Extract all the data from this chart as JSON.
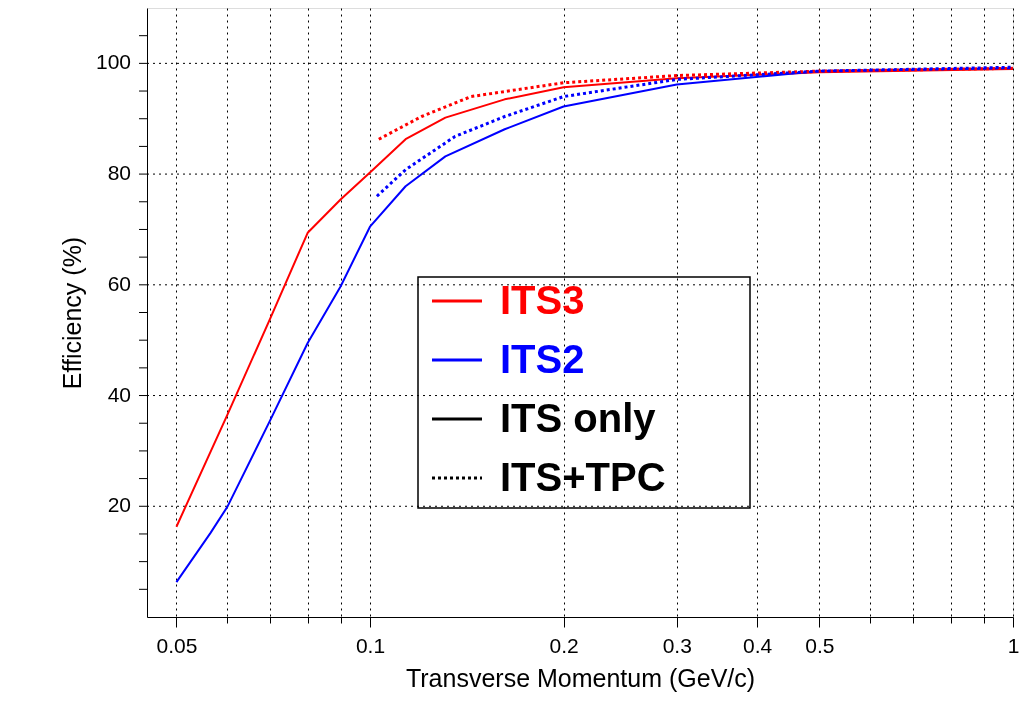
{
  "chart_data": {
    "type": "line",
    "xlabel": "Transverse Momentum (GeV/c)",
    "ylabel": "Efficiency (%)",
    "log": "x",
    "grid": true,
    "legend": "center",
    "xlim": [
      0.045,
      1
    ],
    "ylim": [
      0,
      110
    ],
    "xticks": [
      0.05,
      {
        "value": 0.06,
        "label": null
      },
      {
        "value": 0.07,
        "label": null
      },
      {
        "value": 0.08,
        "label": null
      },
      {
        "value": 0.09,
        "label": null
      },
      0.1,
      0.2,
      0.3,
      0.4,
      0.5,
      {
        "value": 0.6,
        "label": null
      },
      {
        "value": 0.7,
        "label": null
      },
      {
        "value": 0.8,
        "label": null
      },
      {
        "value": 0.9,
        "label": null
      },
      1
    ],
    "yticks": [
      {
        "value": 5,
        "label": null
      },
      {
        "value": 10,
        "label": null
      },
      {
        "value": 15,
        "label": null
      },
      20,
      {
        "value": 25,
        "label": null
      },
      {
        "value": 30,
        "label": null
      },
      {
        "value": 35,
        "label": null
      },
      40,
      {
        "value": 45,
        "label": null
      },
      {
        "value": 50,
        "label": null
      },
      {
        "value": 55,
        "label": null
      },
      60,
      {
        "value": 65,
        "label": null
      },
      {
        "value": 70,
        "label": null
      },
      {
        "value": 75,
        "label": null
      },
      80,
      {
        "value": 85,
        "label": null
      },
      {
        "value": 90,
        "label": null
      },
      {
        "value": 95,
        "label": null
      },
      100,
      {
        "value": 105,
        "label": null
      }
    ],
    "series": [
      {
        "name": "ITS3",
        "color": "#ff0000",
        "line_style": "solid",
        "x": [
          0.05,
          0.06,
          0.07,
          0.08,
          0.09,
          0.1,
          0.1136,
          0.131,
          0.162,
          0.2,
          0.3,
          0.5,
          1.0
        ],
        "values": [
          16.3,
          36.5,
          54,
          69.4,
          75.4,
          80.3,
          86.3,
          90.2,
          93.5,
          95.7,
          97.3,
          98.4,
          99.0
        ]
      },
      {
        "name": "ITS2",
        "color": "#0000ff",
        "line_style": "solid",
        "x": [
          0.05,
          0.0565,
          0.06,
          0.07,
          0.08,
          0.09,
          0.1,
          0.1136,
          0.131,
          0.162,
          0.2,
          0.3,
          0.5,
          1.0
        ],
        "values": [
          6.3,
          15.2,
          19.9,
          35.6,
          49.5,
          59.7,
          70.5,
          77.8,
          83.2,
          88.1,
          92.2,
          96.2,
          98.6,
          99.1
        ]
      },
      {
        "color": "#ff0000",
        "line_style": "dotted",
        "x": [
          0.1032,
          0.1203,
          0.1436,
          0.2,
          0.3,
          0.5,
          1.0
        ],
        "values": [
          86.3,
          90.4,
          94.0,
          96.5,
          97.8,
          98.6,
          99.1
        ]
      },
      {
        "color": "#0000ff",
        "line_style": "dotted",
        "x": [
          0.1025,
          0.1136,
          0.1356,
          0.162,
          0.2,
          0.3,
          0.5,
          1.0
        ],
        "values": [
          76.0,
          80.8,
          86.8,
          90.4,
          94.0,
          97.1,
          98.6,
          99.3
        ]
      }
    ],
    "annotations": [
      "ITS only",
      "ITS+TPC"
    ]
  }
}
